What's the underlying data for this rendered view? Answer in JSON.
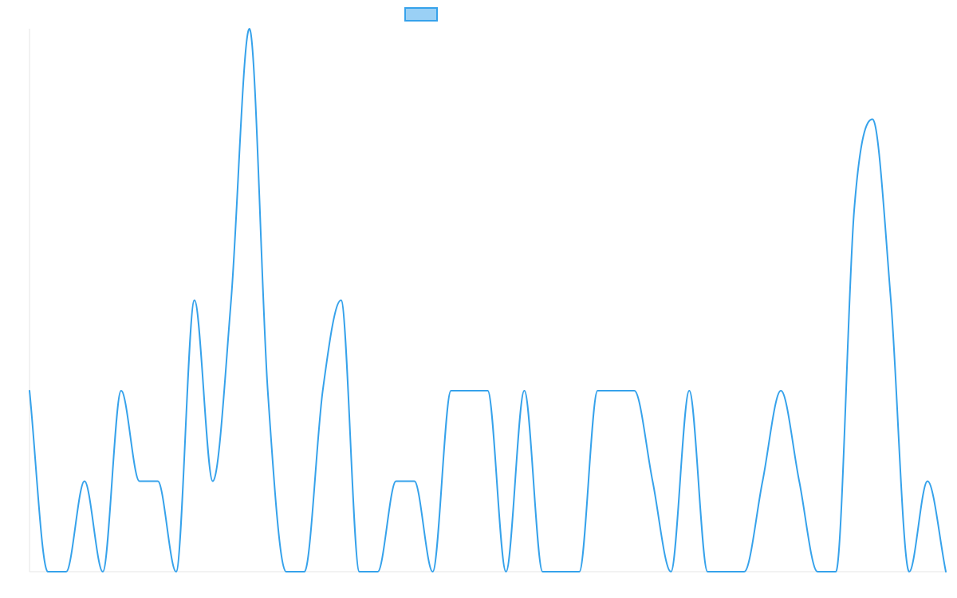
{
  "chart_data": {
    "type": "line",
    "title": "",
    "xlabel": "",
    "ylabel": "",
    "grid": false,
    "legend_position": "top-center",
    "smooth": true,
    "y_range": [
      0,
      6
    ],
    "series": [
      {
        "name": "",
        "color": "#36a2eb",
        "fill_color": "#9ad0f5",
        "values": [
          2,
          0,
          0,
          1,
          0,
          2,
          1,
          1,
          0,
          3,
          1,
          3,
          6,
          2,
          0,
          0,
          2,
          3,
          0,
          0,
          1,
          1,
          0,
          2,
          2,
          2,
          0,
          2,
          0,
          0,
          0,
          2,
          2,
          2,
          1,
          0,
          2,
          0,
          0,
          0,
          1,
          2,
          1,
          0,
          0,
          4,
          5,
          3,
          0,
          1,
          0
        ]
      }
    ]
  }
}
